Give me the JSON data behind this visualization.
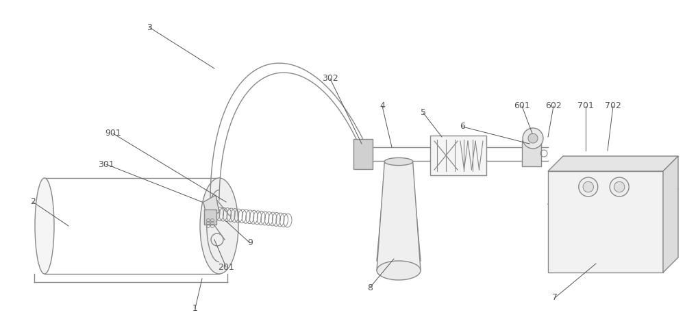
{
  "bg_color": "#ffffff",
  "line_color": "#888888",
  "line_width": 1.0,
  "label_color": "#555555",
  "label_fontsize": 9,
  "fig_w": 10.0,
  "fig_h": 4.63,
  "dpi": 100
}
